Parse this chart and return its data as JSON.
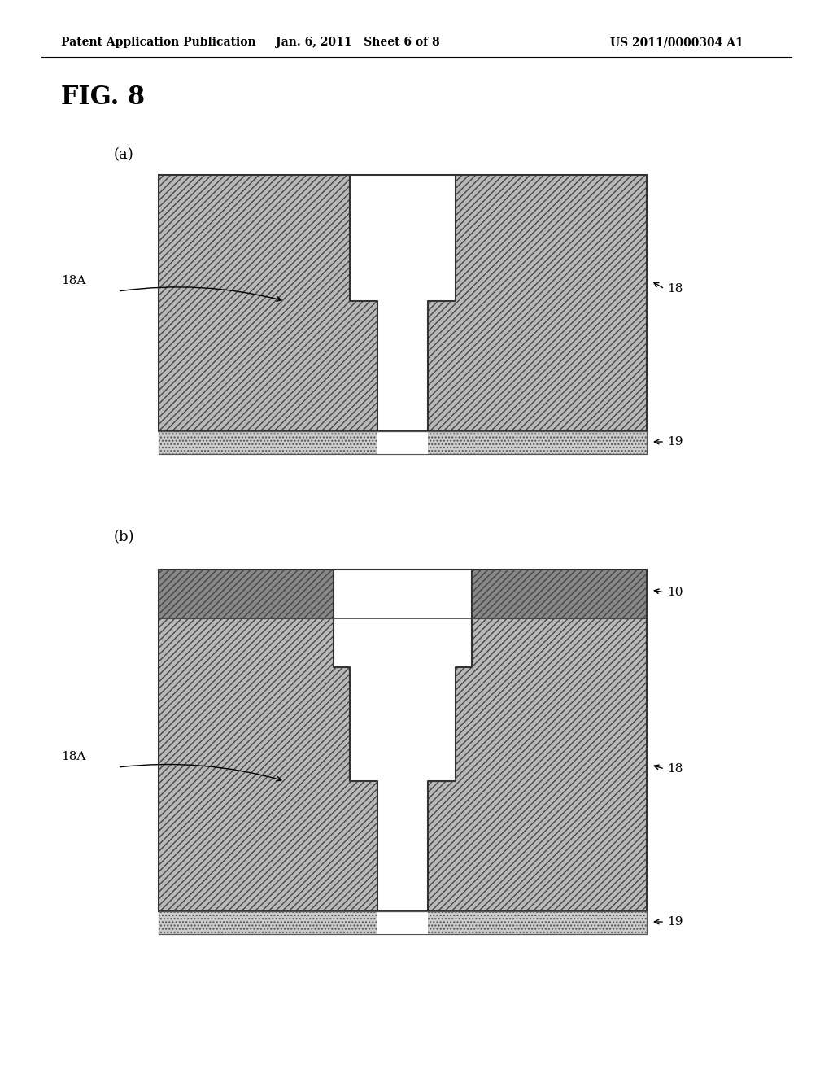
{
  "title": "FIG. 8",
  "header_left": "Patent Application Publication",
  "header_mid": "Jan. 6, 2011   Sheet 6 of 8",
  "header_right": "US 2011/0000304 A1",
  "background": "#ffffff",
  "label_a": "(a)",
  "label_b": "(b)",
  "fig_width": 10.24,
  "fig_height": 13.2,
  "dpi": 100
}
